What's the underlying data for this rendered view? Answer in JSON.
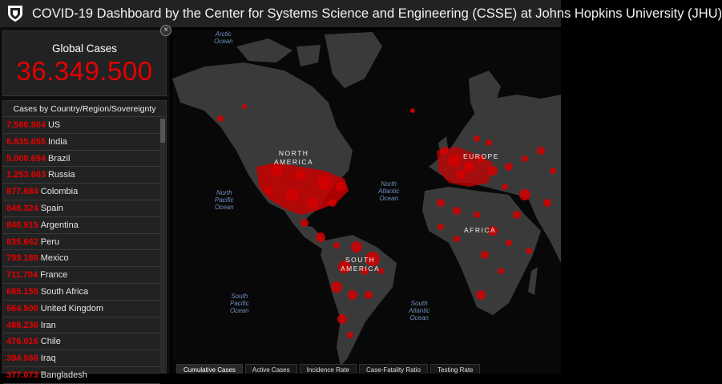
{
  "header": {
    "title": "COVID-19 Dashboard by the Center for Systems Science and Engineering (CSSE) at Johns Hopkins University (JHU)"
  },
  "global": {
    "label": "Global Cases",
    "value": "36.349.500"
  },
  "country_list": {
    "header": "Cases by Country/Region/Sovereignty",
    "items": [
      {
        "cases": "7.586.904",
        "name": "US"
      },
      {
        "cases": "6.835.655",
        "name": "India"
      },
      {
        "cases": "5.000.694",
        "name": "Brazil"
      },
      {
        "cases": "1.253.603",
        "name": "Russia"
      },
      {
        "cases": "877.684",
        "name": "Colombia"
      },
      {
        "cases": "848.324",
        "name": "Spain"
      },
      {
        "cases": "840.915",
        "name": "Argentina"
      },
      {
        "cases": "835.662",
        "name": "Peru"
      },
      {
        "cases": "799.188",
        "name": "Mexico"
      },
      {
        "cases": "711.704",
        "name": "France"
      },
      {
        "cases": "685.155",
        "name": "South Africa"
      },
      {
        "cases": "564.500",
        "name": "United Kingdom"
      },
      {
        "cases": "488.236",
        "name": "Iran"
      },
      {
        "cases": "476.016",
        "name": "Chile"
      },
      {
        "cases": "394.566",
        "name": "Iraq"
      },
      {
        "cases": "377.073",
        "name": "Bangladesh"
      }
    ]
  },
  "map": {
    "labels": {
      "arctic": "Arctic\nOcean",
      "north_pacific": "North\nPacific\nOcean",
      "north_atlantic": "North\nAtlantic\nOcean",
      "south_pacific": "South\nPacific\nOcean",
      "south_atlantic": "South\nAtlantic\nOcean",
      "north_america": "NORTH\nAMERICA",
      "south_america": "SOUTH\nAMERICA",
      "europe": "EUROPE",
      "africa": "AFRICA"
    }
  },
  "tabs": [
    "Cumulative Cases",
    "Active Cases",
    "Incidence Rate",
    "Case-Fatality Ratio",
    "Testing Rate"
  ],
  "colors": {
    "accent_red": "#e60000",
    "panel": "#222222",
    "land": "#3a3a3a",
    "ocean": "#080808"
  }
}
